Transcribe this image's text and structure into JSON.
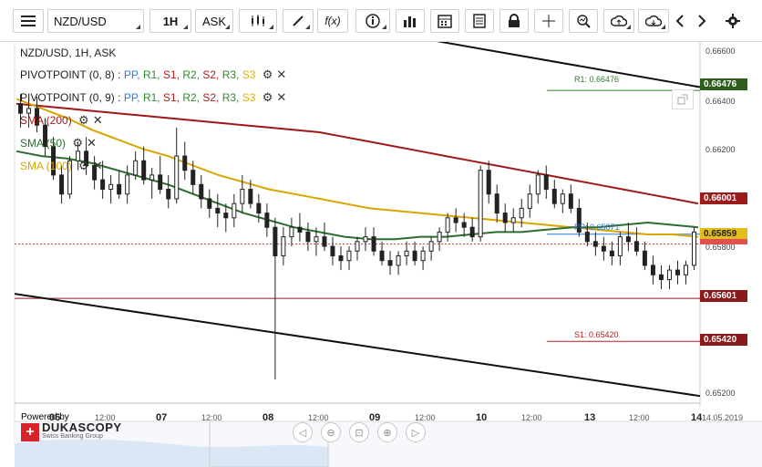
{
  "toolbar": {
    "symbol": "NZD/USD",
    "timeframe": "1H",
    "price_type": "ASK",
    "fx_label": "f(x)"
  },
  "legend": {
    "title": "NZD/USD, 1H, ASK",
    "pivot1": "PIVOTPOINT (0, 8)",
    "pivot2": "PIVOTPOINT (0, 9)",
    "pivot_series": [
      {
        "name": "PP",
        "color": "#2c7bd6"
      },
      {
        "name": "R1",
        "color": "#2e8b2e"
      },
      {
        "name": "S1",
        "color": "#b02020"
      },
      {
        "name": "R2",
        "color": "#2e8b2e"
      },
      {
        "name": "S2",
        "color": "#b02020"
      },
      {
        "name": "R3",
        "color": "#2e8b2e"
      },
      {
        "name": "S3",
        "color": "#e0b000"
      }
    ],
    "sma200": "SMA (200)",
    "sma50": "SMA (50)",
    "sma100": "SMA (100)"
  },
  "branding": {
    "powered_by": "Powered by",
    "name": "DUKASCOPY",
    "sub": "Swiss Banking Group"
  },
  "price_tags": {
    "r1": "0.66476",
    "sma200": "0.66001",
    "sma100": "0.65859",
    "pp_line": "0.65601",
    "s1": "0.65420"
  },
  "line_labels": {
    "r1": "R1: 0.66476",
    "pp": "PP: 0.65871",
    "s1": "S1: 0.65420"
  },
  "chart_data": {
    "type": "candlestick",
    "y_axis": {
      "min": 0.6516,
      "max": 0.6668,
      "ticks": [
        "0.66600",
        "0.66400",
        "0.66200",
        "0.65800",
        "0.65200"
      ]
    },
    "x_axis": {
      "dates": [
        "06",
        "07",
        "08",
        "09",
        "10",
        "13",
        "14"
      ],
      "times": [
        "12:00",
        "12:00",
        "12:00",
        "12:00",
        "12:00",
        "12:00"
      ],
      "end_label": "14.05.2019"
    },
    "levels": {
      "r1": 0.66476,
      "pp": 0.65871,
      "s1": 0.6542,
      "horizontal_red": 0.65601,
      "current": 0.6583
    },
    "candles": [
      [
        0.6642,
        0.6646,
        0.6632,
        0.6638
      ],
      [
        0.6638,
        0.6644,
        0.6632,
        0.664
      ],
      [
        0.664,
        0.6645,
        0.663,
        0.6633
      ],
      [
        0.6633,
        0.6636,
        0.662,
        0.6624
      ],
      [
        0.6624,
        0.6628,
        0.661,
        0.6612
      ],
      [
        0.6612,
        0.6616,
        0.66,
        0.6604
      ],
      [
        0.6604,
        0.662,
        0.6602,
        0.6618
      ],
      [
        0.6618,
        0.6626,
        0.6614,
        0.6622
      ],
      [
        0.6622,
        0.6628,
        0.6612,
        0.6616
      ],
      [
        0.6616,
        0.662,
        0.6606,
        0.661
      ],
      [
        0.661,
        0.6618,
        0.6602,
        0.6606
      ],
      [
        0.6606,
        0.6612,
        0.66,
        0.6608
      ],
      [
        0.6608,
        0.6614,
        0.6602,
        0.6604
      ],
      [
        0.6604,
        0.6616,
        0.66,
        0.6612
      ],
      [
        0.6612,
        0.6622,
        0.661,
        0.6618
      ],
      [
        0.6618,
        0.6624,
        0.6608,
        0.661
      ],
      [
        0.661,
        0.6615,
        0.6602,
        0.6612
      ],
      [
        0.6612,
        0.662,
        0.6604,
        0.6606
      ],
      [
        0.6606,
        0.6612,
        0.6598,
        0.6602
      ],
      [
        0.6602,
        0.6632,
        0.66,
        0.662
      ],
      [
        0.662,
        0.6626,
        0.661,
        0.6614
      ],
      [
        0.6614,
        0.6618,
        0.6604,
        0.6608
      ],
      [
        0.6608,
        0.6612,
        0.6598,
        0.6602
      ],
      [
        0.6602,
        0.6606,
        0.6594,
        0.6598
      ],
      [
        0.6598,
        0.6604,
        0.659,
        0.6596
      ],
      [
        0.6596,
        0.66,
        0.6588,
        0.6594
      ],
      [
        0.6594,
        0.6604,
        0.659,
        0.66
      ],
      [
        0.66,
        0.6612,
        0.6596,
        0.6606
      ],
      [
        0.6606,
        0.661,
        0.6598,
        0.66
      ],
      [
        0.66,
        0.6604,
        0.6592,
        0.6596
      ],
      [
        0.6596,
        0.66,
        0.6586,
        0.659
      ],
      [
        0.659,
        0.6594,
        0.6526,
        0.6578
      ],
      [
        0.6578,
        0.659,
        0.6574,
        0.6586
      ],
      [
        0.6586,
        0.6594,
        0.6582,
        0.659
      ],
      [
        0.659,
        0.6596,
        0.6584,
        0.6588
      ],
      [
        0.6588,
        0.6592,
        0.658,
        0.6584
      ],
      [
        0.6584,
        0.659,
        0.6578,
        0.6586
      ],
      [
        0.6586,
        0.6592,
        0.658,
        0.6582
      ],
      [
        0.6582,
        0.6586,
        0.6574,
        0.6578
      ],
      [
        0.6578,
        0.6582,
        0.6572,
        0.6576
      ],
      [
        0.6576,
        0.6582,
        0.6572,
        0.658
      ],
      [
        0.658,
        0.6586,
        0.6576,
        0.6584
      ],
      [
        0.6584,
        0.659,
        0.658,
        0.6586
      ],
      [
        0.6586,
        0.659,
        0.6578,
        0.658
      ],
      [
        0.658,
        0.6584,
        0.6574,
        0.6576
      ],
      [
        0.6576,
        0.658,
        0.657,
        0.6574
      ],
      [
        0.6574,
        0.658,
        0.657,
        0.6578
      ],
      [
        0.6578,
        0.6584,
        0.6574,
        0.658
      ],
      [
        0.658,
        0.6584,
        0.6574,
        0.6576
      ],
      [
        0.6576,
        0.6582,
        0.6572,
        0.658
      ],
      [
        0.658,
        0.6586,
        0.6576,
        0.6584
      ],
      [
        0.6584,
        0.659,
        0.658,
        0.6588
      ],
      [
        0.6588,
        0.6596,
        0.6584,
        0.6594
      ],
      [
        0.6594,
        0.6598,
        0.6588,
        0.6592
      ],
      [
        0.6592,
        0.6596,
        0.6586,
        0.659
      ],
      [
        0.659,
        0.6594,
        0.6584,
        0.6586
      ],
      [
        0.6586,
        0.6616,
        0.6584,
        0.6614
      ],
      [
        0.6614,
        0.6618,
        0.66,
        0.6604
      ],
      [
        0.6604,
        0.6608,
        0.6592,
        0.6596
      ],
      [
        0.6596,
        0.66,
        0.6588,
        0.6592
      ],
      [
        0.6592,
        0.6598,
        0.6588,
        0.6594
      ],
      [
        0.6594,
        0.6602,
        0.659,
        0.6598
      ],
      [
        0.6598,
        0.6608,
        0.6594,
        0.6604
      ],
      [
        0.6604,
        0.6614,
        0.66,
        0.6612
      ],
      [
        0.6612,
        0.6616,
        0.6602,
        0.6606
      ],
      [
        0.6606,
        0.661,
        0.6598,
        0.66
      ],
      [
        0.66,
        0.6606,
        0.6596,
        0.6604
      ],
      [
        0.6604,
        0.6608,
        0.6596,
        0.6598
      ],
      [
        0.6598,
        0.6602,
        0.6586,
        0.6588
      ],
      [
        0.6588,
        0.6592,
        0.6582,
        0.6584
      ],
      [
        0.6584,
        0.6588,
        0.6578,
        0.6582
      ],
      [
        0.6582,
        0.6586,
        0.6576,
        0.658
      ],
      [
        0.658,
        0.6584,
        0.6574,
        0.6578
      ],
      [
        0.6578,
        0.6588,
        0.6574,
        0.6586
      ],
      [
        0.6586,
        0.6592,
        0.658,
        0.6584
      ],
      [
        0.6584,
        0.659,
        0.6578,
        0.658
      ],
      [
        0.658,
        0.6584,
        0.6572,
        0.6574
      ],
      [
        0.6574,
        0.6578,
        0.6566,
        0.657
      ],
      [
        0.657,
        0.6574,
        0.6564,
        0.6568
      ],
      [
        0.6568,
        0.6574,
        0.6564,
        0.6572
      ],
      [
        0.6572,
        0.6576,
        0.6566,
        0.657
      ],
      [
        0.657,
        0.6576,
        0.6566,
        0.6574
      ],
      [
        0.6574,
        0.659,
        0.6572,
        0.6588
      ]
    ],
    "sma200": [
      0.6642,
      0.6641,
      0.664,
      0.6639,
      0.6638,
      0.6637,
      0.6636,
      0.6635,
      0.6634,
      0.6633,
      0.6632,
      0.6631,
      0.663,
      0.6628,
      0.6626,
      0.6624,
      0.6622,
      0.662,
      0.6618,
      0.6616,
      0.6614,
      0.6612,
      0.661,
      0.6608,
      0.6606,
      0.6604,
      0.6602,
      0.66
    ],
    "sma100": [
      0.6644,
      0.664,
      0.6636,
      0.6631,
      0.6627,
      0.6623,
      0.662,
      0.6616,
      0.6612,
      0.6609,
      0.6606,
      0.6604,
      0.6602,
      0.66,
      0.6598,
      0.6597,
      0.6596,
      0.6595,
      0.6594,
      0.6593,
      0.6592,
      0.6591,
      0.659,
      0.6589,
      0.6588,
      0.6587,
      0.6587,
      0.6586
    ],
    "sma50": [
      0.6622,
      0.662,
      0.6619,
      0.6617,
      0.6614,
      0.6611,
      0.6608,
      0.6604,
      0.66,
      0.6596,
      0.6593,
      0.659,
      0.6588,
      0.6586,
      0.6585,
      0.6585,
      0.6586,
      0.6586,
      0.6587,
      0.6588,
      0.6588,
      0.6589,
      0.659,
      0.659,
      0.6591,
      0.6592,
      0.6591,
      0.659
    ],
    "trend_upper": [
      0.6674,
      0.6649
    ],
    "trend_lower": [
      0.6562,
      0.6519
    ]
  }
}
